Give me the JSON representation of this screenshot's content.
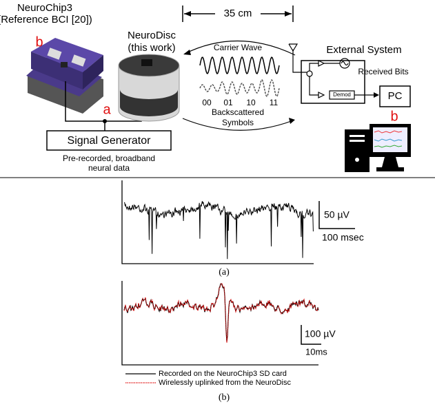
{
  "top_panel": {
    "neurochip": {
      "title": "NeuroChip3",
      "subtitle": "(Reference BCI [20])",
      "label": "b"
    },
    "neurodisc": {
      "title": "NeuroDisc",
      "subtitle": "(this work)"
    },
    "distance": "35 cm",
    "carrier": "Carrier Wave",
    "symbols": [
      "00",
      "01",
      "10",
      "11"
    ],
    "backscatter": [
      "Backscattered",
      "Symbols"
    ],
    "external": {
      "title": "External System",
      "received": "Received Bits",
      "demod": "Demod",
      "pc": "PC",
      "label": "b"
    },
    "generator": {
      "label": "a",
      "title": "Signal Generator",
      "caption": [
        "Pre-recorded, broadband",
        "neural data"
      ]
    }
  },
  "panel_a": {
    "scale_y": "50 µV",
    "scale_x": "100 msec",
    "caption": "(a)"
  },
  "panel_b": {
    "scale_y": "100 µV",
    "scale_x": "10ms",
    "legend": [
      "Recorded on the NeuroChip3 SD card",
      "Wirelessly uplinked from the NeuroDisc"
    ],
    "caption": "(b)"
  }
}
